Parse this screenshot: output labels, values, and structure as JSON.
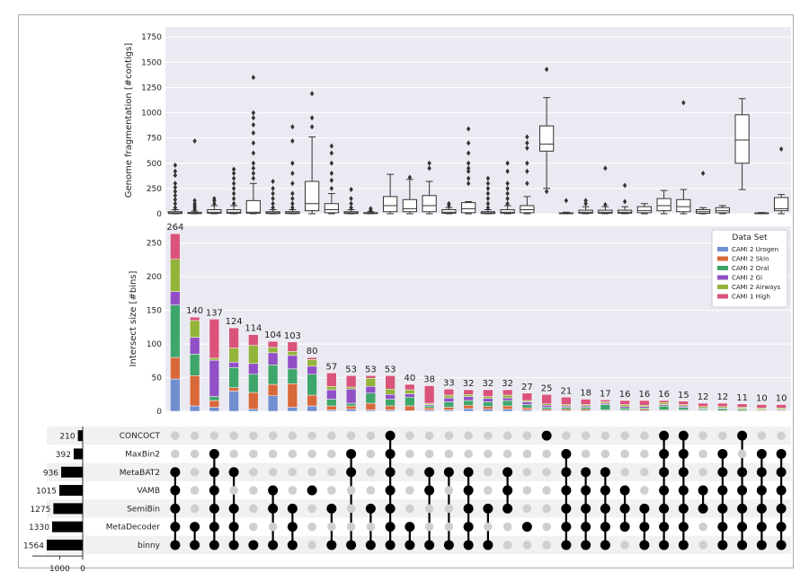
{
  "chart_data": [
    {
      "type": "box",
      "ylabel": "Genome fragmentation [#contigs]",
      "ylim": [
        0,
        1850
      ],
      "yticks": [
        0,
        250,
        500,
        750,
        1000,
        1250,
        1500,
        1750
      ],
      "grid": true,
      "boxes": [
        {
          "q1": 2,
          "median": 8,
          "q3": 20,
          "wlo": 0,
          "whi": 40,
          "fliers": [
            60,
            100,
            140,
            180,
            220,
            260,
            300,
            380,
            420,
            480
          ]
        },
        {
          "q1": 2,
          "median": 5,
          "q3": 12,
          "wlo": 0,
          "whi": 25,
          "fliers": [
            40,
            60,
            80,
            100,
            130,
            720
          ]
        },
        {
          "q1": 5,
          "median": 15,
          "q3": 40,
          "wlo": 0,
          "whi": 80,
          "fliers": [
            100,
            130,
            150
          ]
        },
        {
          "q1": 5,
          "median": 15,
          "q3": 40,
          "wlo": 0,
          "whi": 80,
          "fliers": [
            100,
            150,
            200,
            250,
            300,
            350,
            400,
            440
          ]
        },
        {
          "q1": 5,
          "median": 15,
          "q3": 130,
          "wlo": 0,
          "whi": 300,
          "fliers": [
            350,
            400,
            450,
            500,
            600,
            700,
            800,
            880,
            950,
            1000,
            1350
          ]
        },
        {
          "q1": 2,
          "median": 8,
          "q3": 20,
          "wlo": 0,
          "whi": 40,
          "fliers": [
            60,
            100,
            150,
            200,
            250,
            320
          ]
        },
        {
          "q1": 2,
          "median": 8,
          "q3": 20,
          "wlo": 0,
          "whi": 40,
          "fliers": [
            60,
            100,
            150,
            200,
            300,
            400,
            500,
            720,
            860
          ]
        },
        {
          "q1": 30,
          "median": 100,
          "q3": 320,
          "wlo": 0,
          "whi": 760,
          "fliers": [
            860,
            950,
            1190
          ]
        },
        {
          "q1": 10,
          "median": 40,
          "q3": 100,
          "wlo": 0,
          "whi": 200,
          "fliers": [
            250,
            330,
            400,
            500,
            600,
            670
          ]
        },
        {
          "q1": 2,
          "median": 8,
          "q3": 20,
          "wlo": 0,
          "whi": 40,
          "fliers": [
            60,
            100,
            150,
            240
          ]
        },
        {
          "q1": 2,
          "median": 5,
          "q3": 10,
          "wlo": 0,
          "whi": 20,
          "fliers": [
            30,
            50
          ]
        },
        {
          "q1": 20,
          "median": 80,
          "q3": 170,
          "wlo": 0,
          "whi": 390,
          "fliers": []
        },
        {
          "q1": 20,
          "median": 50,
          "q3": 140,
          "wlo": 0,
          "whi": 340,
          "fliers": [
            360
          ]
        },
        {
          "q1": 20,
          "median": 80,
          "q3": 180,
          "wlo": 0,
          "whi": 320,
          "fliers": [
            450,
            500
          ]
        },
        {
          "q1": 5,
          "median": 15,
          "q3": 40,
          "wlo": 0,
          "whi": 60,
          "fliers": [
            80,
            100
          ]
        },
        {
          "q1": 10,
          "median": 50,
          "q3": 110,
          "wlo": 0,
          "whi": 120,
          "fliers": [
            300,
            350,
            420,
            450,
            500,
            600,
            700,
            840
          ]
        },
        {
          "q1": 2,
          "median": 8,
          "q3": 20,
          "wlo": 0,
          "whi": 40,
          "fliers": [
            60,
            100,
            150,
            200,
            250,
            300,
            350
          ]
        },
        {
          "q1": 5,
          "median": 15,
          "q3": 40,
          "wlo": 0,
          "whi": 80,
          "fliers": [
            100,
            150,
            200,
            250,
            300,
            420,
            500
          ]
        },
        {
          "q1": 10,
          "median": 40,
          "q3": 80,
          "wlo": 0,
          "whi": 170,
          "fliers": [
            300,
            420,
            500,
            650,
            700,
            760
          ]
        },
        {
          "q1": 620,
          "median": 690,
          "q3": 870,
          "wlo": 250,
          "whi": 1150,
          "fliers": [
            220,
            1430
          ]
        },
        {
          "q1": 2,
          "median": 5,
          "q3": 8,
          "wlo": 0,
          "whi": 15,
          "fliers": [
            130
          ]
        },
        {
          "q1": 5,
          "median": 15,
          "q3": 35,
          "wlo": 0,
          "whi": 70,
          "fliers": [
            100,
            130
          ]
        },
        {
          "q1": 5,
          "median": 15,
          "q3": 35,
          "wlo": 0,
          "whi": 70,
          "fliers": [
            90,
            450
          ]
        },
        {
          "q1": 5,
          "median": 15,
          "q3": 35,
          "wlo": 0,
          "whi": 70,
          "fliers": [
            120,
            280
          ]
        },
        {
          "q1": 10,
          "median": 30,
          "q3": 70,
          "wlo": 0,
          "whi": 100,
          "fliers": []
        },
        {
          "q1": 30,
          "median": 80,
          "q3": 150,
          "wlo": 0,
          "whi": 230,
          "fliers": []
        },
        {
          "q1": 20,
          "median": 70,
          "q3": 140,
          "wlo": 0,
          "whi": 240,
          "fliers": [
            1100
          ]
        },
        {
          "q1": 5,
          "median": 20,
          "q3": 40,
          "wlo": 0,
          "whi": 60,
          "fliers": [
            400
          ]
        },
        {
          "q1": 10,
          "median": 30,
          "q3": 60,
          "wlo": 0,
          "whi": 80,
          "fliers": []
        },
        {
          "q1": 500,
          "median": 730,
          "q3": 980,
          "wlo": 240,
          "whi": 1140,
          "fliers": []
        },
        {
          "q1": 2,
          "median": 5,
          "q3": 8,
          "wlo": 0,
          "whi": 12,
          "fliers": []
        },
        {
          "q1": 30,
          "median": 50,
          "q3": 160,
          "wlo": 0,
          "whi": 190,
          "fliers": [
            640
          ]
        }
      ]
    },
    {
      "type": "bar",
      "stacked": true,
      "ylabel": "Intersect size [#bins]",
      "ylim": [
        0,
        275
      ],
      "yticks": [
        0,
        50,
        100,
        150,
        200,
        250
      ],
      "grid": true,
      "totals": [
        264,
        140,
        137,
        124,
        114,
        104,
        103,
        80,
        57,
        53,
        53,
        53,
        40,
        38,
        33,
        32,
        32,
        32,
        27,
        25,
        21,
        18,
        17,
        16,
        16,
        16,
        15,
        12,
        12,
        11,
        10,
        10
      ],
      "legend": {
        "title": "Data Set",
        "position": "top-right",
        "entries": [
          "CAMI 2 Urogen",
          "CAMI 2 Skin",
          "CAMI 2 Oral",
          "CAMI 2 Gi",
          "CAMI 2 Airways",
          "CAMI 1 High"
        ]
      },
      "series": [
        {
          "name": "CAMI 2 Urogen",
          "color": "#6f8fd0",
          "values": [
            48,
            8,
            6,
            30,
            3,
            23,
            6,
            8,
            2,
            3,
            2,
            2,
            1,
            2,
            2,
            4,
            3,
            3,
            2,
            1,
            1,
            1,
            1,
            1,
            1,
            1,
            1,
            1,
            0,
            0,
            0,
            0
          ]
        },
        {
          "name": "CAMI 2 Skin",
          "color": "#d9683a",
          "values": [
            32,
            45,
            10,
            5,
            25,
            17,
            35,
            16,
            6,
            5,
            10,
            6,
            7,
            3,
            4,
            5,
            4,
            5,
            3,
            2,
            2,
            2,
            1,
            1,
            2,
            1,
            1,
            1,
            1,
            1,
            1,
            1
          ]
        },
        {
          "name": "CAMI 2 Oral",
          "color": "#3fa66b",
          "values": [
            78,
            32,
            6,
            30,
            27,
            29,
            22,
            31,
            10,
            4,
            15,
            10,
            13,
            3,
            8,
            7,
            7,
            8,
            5,
            3,
            3,
            3,
            8,
            3,
            2,
            6,
            4,
            2,
            3,
            2,
            1,
            1
          ]
        },
        {
          "name": "CAMI 2 Gi",
          "color": "#9150c6",
          "values": [
            20,
            25,
            54,
            8,
            16,
            18,
            20,
            12,
            14,
            21,
            10,
            7,
            5,
            2,
            6,
            6,
            5,
            4,
            4,
            3,
            2,
            2,
            2,
            2,
            2,
            2,
            2,
            1,
            1,
            1,
            1,
            1
          ]
        },
        {
          "name": "CAMI 2 Airways",
          "color": "#93b43a",
          "values": [
            48,
            25,
            3,
            21,
            27,
            8,
            6,
            10,
            5,
            3,
            12,
            8,
            6,
            2,
            4,
            3,
            3,
            4,
            2,
            2,
            2,
            2,
            2,
            3,
            2,
            3,
            2,
            2,
            2,
            2,
            2,
            2
          ]
        },
        {
          "name": "CAMI 1 High",
          "color": "#d9537a",
          "values": [
            38,
            5,
            58,
            30,
            16,
            9,
            14,
            3,
            20,
            17,
            4,
            20,
            8,
            26,
            9,
            7,
            10,
            8,
            11,
            14,
            11,
            8,
            3,
            6,
            7,
            3,
            5,
            5,
            5,
            5,
            5,
            5
          ]
        }
      ]
    },
    {
      "type": "matrix",
      "sets": [
        {
          "name": "CONCOCT",
          "size": 210
        },
        {
          "name": "MaxBin2",
          "size": 392
        },
        {
          "name": "MetaBAT2",
          "size": 936
        },
        {
          "name": "VAMB",
          "size": 1015
        },
        {
          "name": "SemiBin",
          "size": 1275
        },
        {
          "name": "MetaDecoder",
          "size": 1330
        },
        {
          "name": "binny",
          "size": 1564
        }
      ],
      "size_axis_ticks": [
        1000,
        0
      ],
      "membership": [
        [
          2,
          3,
          4,
          5,
          6
        ],
        [
          5,
          6
        ],
        [
          1,
          2,
          3,
          4,
          5,
          6
        ],
        [
          2,
          4,
          5,
          6
        ],
        [
          6
        ],
        [
          3,
          4,
          6
        ],
        [
          4,
          5,
          6
        ],
        [
          3
        ],
        [
          4,
          6
        ],
        [
          1,
          2,
          6
        ],
        [
          4,
          6
        ],
        [
          0,
          1,
          2,
          3,
          4,
          5,
          6
        ],
        [
          5,
          6
        ],
        [
          2,
          3,
          6
        ],
        [
          2,
          6
        ],
        [
          2,
          3,
          4,
          5,
          6
        ],
        [
          4,
          6
        ],
        [
          2,
          3,
          4
        ],
        [
          5
        ],
        [
          0
        ],
        [
          1,
          2,
          3,
          4,
          5,
          6
        ],
        [
          2,
          3,
          4,
          5,
          6
        ],
        [
          2,
          3,
          4,
          5,
          6
        ],
        [
          3,
          4,
          5
        ],
        [
          4,
          5,
          6
        ],
        [
          0,
          1,
          2,
          3,
          4,
          5,
          6
        ],
        [
          0,
          1,
          2,
          3,
          4,
          5,
          6
        ],
        [
          3,
          4
        ],
        [
          1,
          2,
          3,
          4,
          5,
          6
        ],
        [
          0,
          2,
          3,
          4,
          5,
          6
        ],
        [
          1,
          2,
          3,
          4,
          5,
          6
        ],
        [
          1,
          2,
          3,
          4,
          5,
          6
        ]
      ]
    }
  ]
}
